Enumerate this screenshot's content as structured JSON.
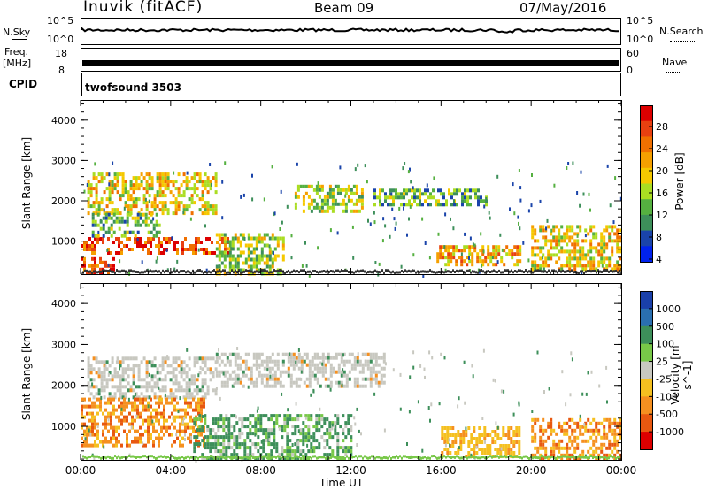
{
  "header": {
    "site": "Inuvik (fitACF)",
    "beam": "Beam 09",
    "date": "07/May/2016"
  },
  "panels": {
    "nsky": {
      "label": "N.Sky",
      "ticks_left": [
        "10^5",
        "10^0"
      ],
      "ticks_right": [
        "10^5",
        "10^0"
      ],
      "right_label": "N.Search"
    },
    "freq": {
      "label_line1": "Freq.",
      "label_line2": "[MHz]",
      "ticks_left": [
        "18",
        "8"
      ],
      "ticks_right": [
        "60",
        "0"
      ],
      "right_label": "Nave"
    },
    "cpid": {
      "label": "CPID",
      "value": "twofsound 3503"
    }
  },
  "colors": {
    "power": [
      "#0022ee",
      "#1a44aa",
      "#3d8f5a",
      "#55b040",
      "#aadd22",
      "#f5c800",
      "#f5a000",
      "#f07000",
      "#e84010",
      "#dd0000"
    ],
    "velocity_pos": [
      "#1a40aa",
      "#2a6fb0",
      "#3d8f5a",
      "#78c848"
    ],
    "velocity_neutral": "#c8c8c0",
    "velocity_neg": [
      "#f5c020",
      "#f59020",
      "#e85810",
      "#dd0000"
    ]
  },
  "chart_data": [
    {
      "type": "heatmap",
      "title": "",
      "xlabel": "Time UT",
      "ylabel": "Slant Range [km]",
      "x_ticks": [
        "00:00",
        "04:00",
        "08:00",
        "12:00",
        "16:00",
        "20:00",
        "00:00"
      ],
      "y_ticks": [
        "1000",
        "2000",
        "3000",
        "4000"
      ],
      "xlim": [
        0,
        24
      ],
      "ylim": [
        180,
        4500
      ],
      "colorbar": {
        "label": "Power [dB]",
        "ticks": [
          "28",
          "24",
          "20",
          "16",
          "12",
          "8",
          "4"
        ]
      },
      "regions": [
        {
          "t0": 0.0,
          "t1": 6.5,
          "r0": 700,
          "r1": 1100,
          "level": 8
        },
        {
          "t0": 0.3,
          "t1": 6.0,
          "r0": 1700,
          "r1": 2700,
          "level": 5
        },
        {
          "t0": 0.5,
          "t1": 3.5,
          "r0": 1100,
          "r1": 1700,
          "level": 3
        },
        {
          "t0": 0.0,
          "t1": 1.5,
          "r0": 180,
          "r1": 600,
          "level": 8
        },
        {
          "t0": 6.0,
          "t1": 9.0,
          "r0": 200,
          "r1": 1200,
          "level": 4
        },
        {
          "t0": 9.5,
          "t1": 12.5,
          "r0": 1700,
          "r1": 2400,
          "level": 4
        },
        {
          "t0": 13.0,
          "t1": 18.0,
          "r0": 1900,
          "r1": 2300,
          "level": 3
        },
        {
          "t0": 15.8,
          "t1": 19.5,
          "r0": 400,
          "r1": 900,
          "level": 6
        },
        {
          "t0": 20.0,
          "t1": 24.0,
          "r0": 300,
          "r1": 1400,
          "level": 5
        }
      ]
    },
    {
      "type": "heatmap",
      "title": "",
      "xlabel": "Time UT",
      "ylabel": "Slant Range [km]",
      "x_ticks": [
        "00:00",
        "04:00",
        "08:00",
        "12:00",
        "16:00",
        "20:00",
        "00:00"
      ],
      "y_ticks": [
        "1000",
        "2000",
        "3000",
        "4000"
      ],
      "xlim": [
        0,
        24
      ],
      "ylim": [
        180,
        4500
      ],
      "colorbar": {
        "label": "Velocity [m s^-1]",
        "ticks": [
          "1000",
          "500",
          "100",
          "25",
          "-25",
          "-100",
          "-500",
          "-1000"
        ]
      },
      "regions": [
        {
          "t0": 0.3,
          "t1": 6.0,
          "r0": 1700,
          "r1": 2700,
          "level": "neutral"
        },
        {
          "t0": 6.0,
          "t1": 13.5,
          "r0": 2000,
          "r1": 2800,
          "level": "neutral"
        },
        {
          "t0": 0.0,
          "t1": 5.5,
          "r0": 500,
          "r1": 1700,
          "level": "neg"
        },
        {
          "t0": 5.0,
          "t1": 12.0,
          "r0": 200,
          "r1": 1300,
          "level": "pos"
        },
        {
          "t0": 16.0,
          "t1": 19.5,
          "r0": 300,
          "r1": 1000,
          "level": "neg-light"
        },
        {
          "t0": 20.0,
          "t1": 24.0,
          "r0": 200,
          "r1": 1200,
          "level": "neg"
        }
      ]
    }
  ]
}
